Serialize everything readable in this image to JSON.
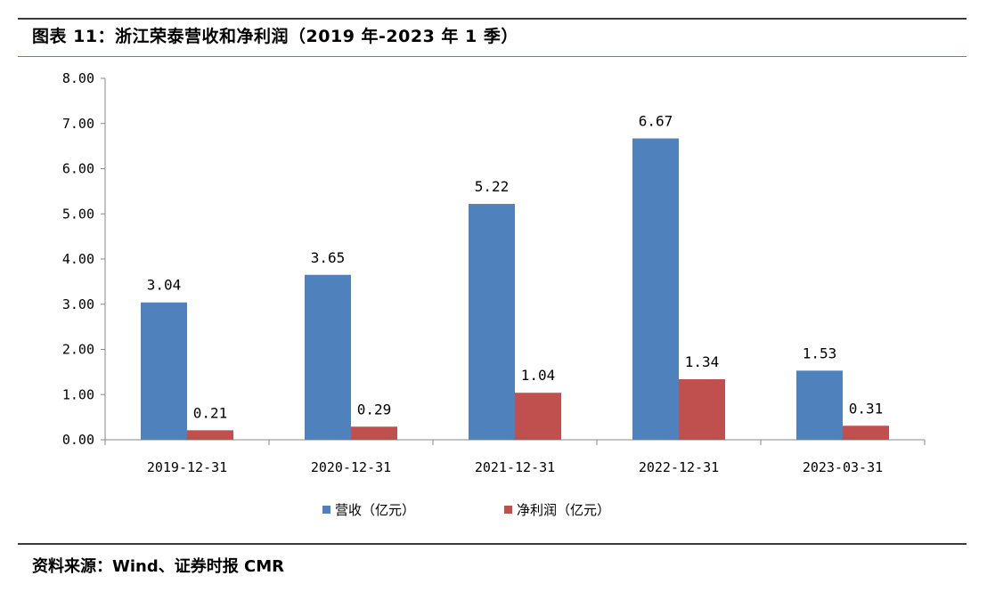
{
  "title": "图表 11：浙江荣泰营收和净利润（2019 年-2023 年 1 季）",
  "source": "资料来源：Wind、证券时报 CMR",
  "chart_data": {
    "type": "bar",
    "categories": [
      "2019-12-31",
      "2020-12-31",
      "2021-12-31",
      "2022-12-31",
      "2023-03-31"
    ],
    "series": [
      {
        "name": "营收（亿元）",
        "values": [
          3.04,
          3.65,
          5.22,
          6.67,
          1.53
        ],
        "labels": [
          "3.04",
          "3.65",
          "5.22",
          "6.67",
          "1.53"
        ],
        "color": "#4f81bd"
      },
      {
        "name": "净利润（亿元）",
        "values": [
          0.21,
          0.29,
          1.04,
          1.34,
          0.31
        ],
        "labels": [
          "0.21",
          "0.29",
          "1.04",
          "1.34",
          "0.31"
        ],
        "color": "#c0504d"
      }
    ],
    "ylim": [
      0,
      8
    ],
    "yticks": [
      "0.00",
      "1.00",
      "2.00",
      "3.00",
      "4.00",
      "5.00",
      "6.00",
      "7.00",
      "8.00"
    ],
    "grid": false,
    "legend_position": "bottom"
  }
}
